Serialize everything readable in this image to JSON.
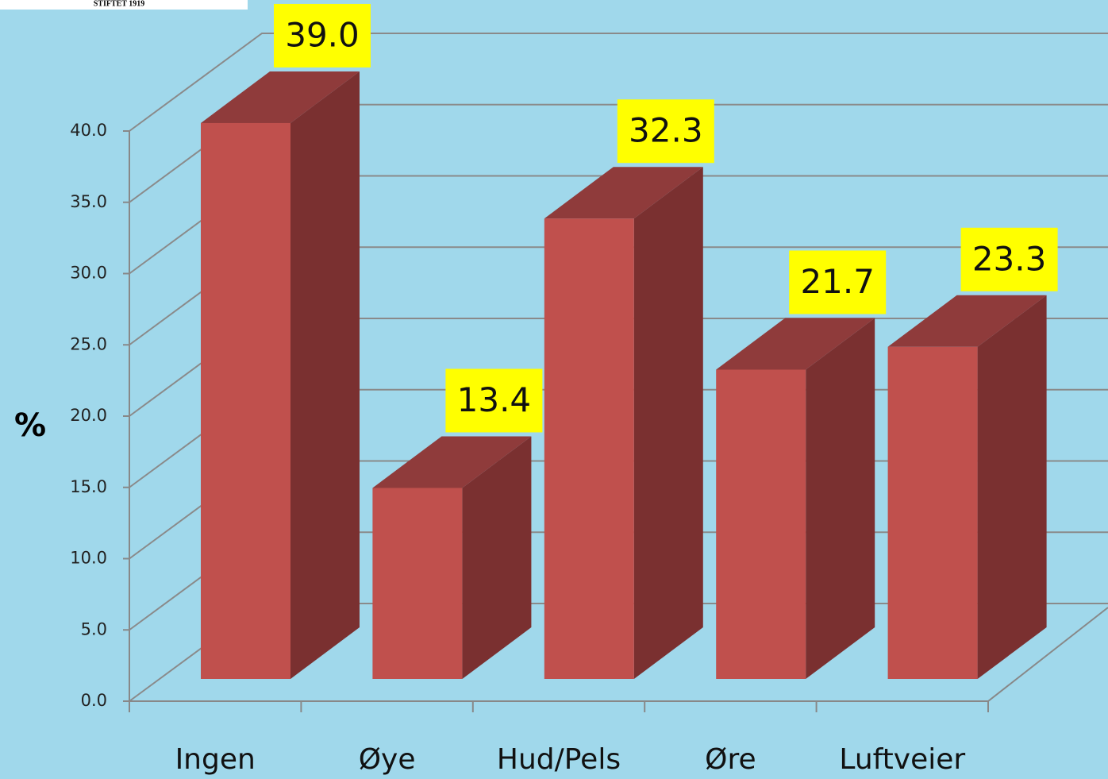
{
  "logo_text": "STIFTET 1919",
  "chart_data": {
    "type": "bar3d",
    "y_label": "%",
    "categories": [
      "Ingen",
      "Øye",
      "Hud/Pels",
      "Øre",
      "Luftveier"
    ],
    "values": [
      39.0,
      13.4,
      32.3,
      21.7,
      23.3
    ],
    "value_labels": [
      "39.0",
      "13.4",
      "32.3",
      "21.7",
      "23.3"
    ],
    "color": "#c0504d",
    "ylim": [
      0,
      40
    ],
    "yticks": [
      {
        "value": 0,
        "label": "0.0"
      },
      {
        "value": 5,
        "label": "5.0"
      },
      {
        "value": 10,
        "label": "10.0"
      },
      {
        "value": 15,
        "label": "15.0"
      },
      {
        "value": 20,
        "label": "20.0"
      },
      {
        "value": 25,
        "label": "25.0"
      },
      {
        "value": 30,
        "label": "30.0"
      },
      {
        "value": 35,
        "label": "35.0"
      },
      {
        "value": 40,
        "label": "40.0"
      }
    ],
    "grid": true
  }
}
